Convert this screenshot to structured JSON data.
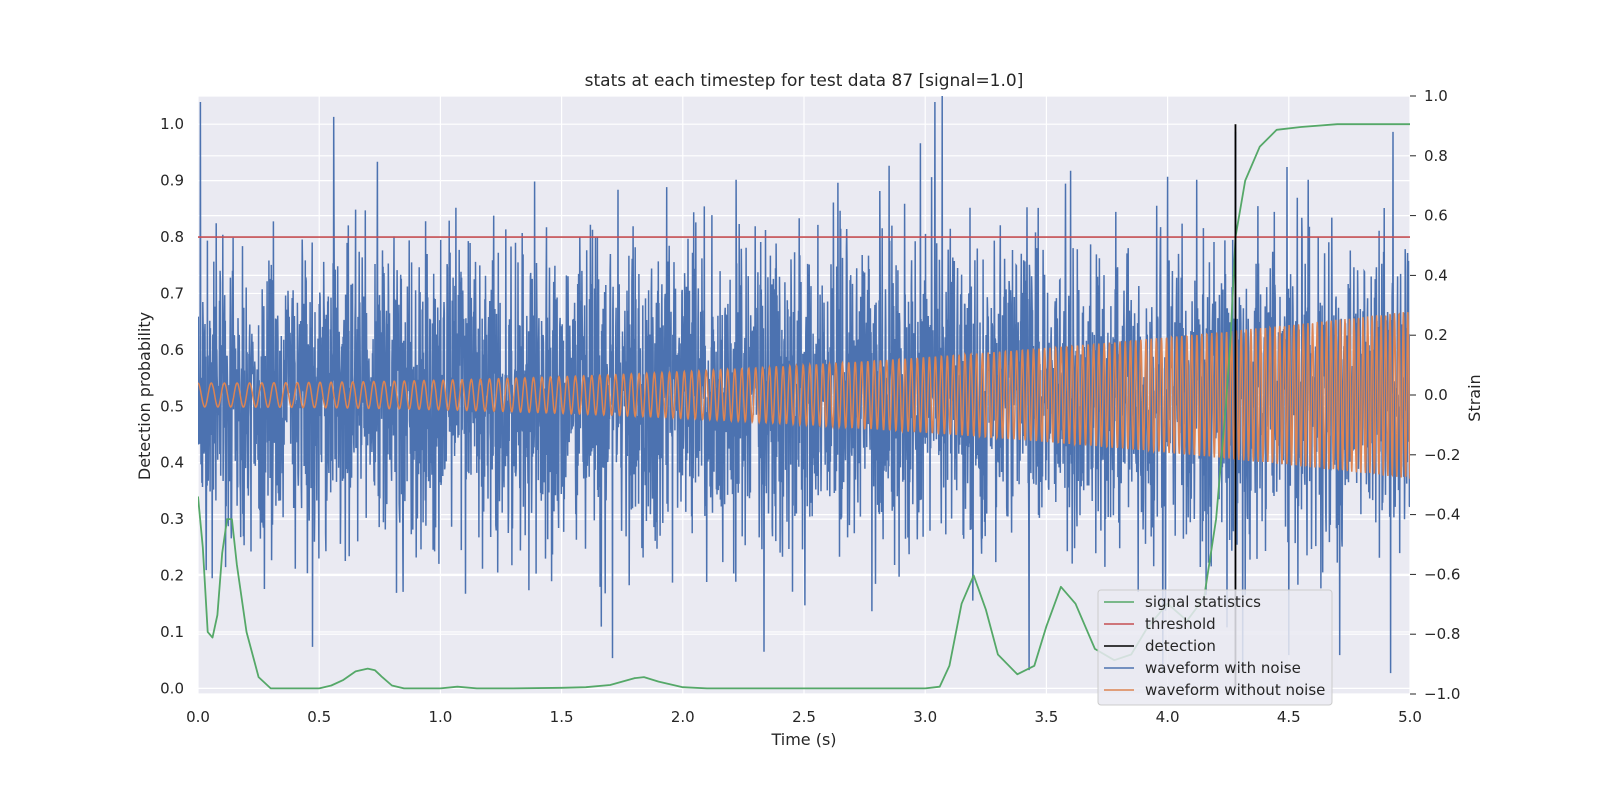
{
  "chart_data": {
    "type": "line",
    "title": "stats at each timestep for test data 87 [signal=1.0]",
    "xlabel": "Time (s)",
    "ylabel": "Detection probability",
    "y2label": "Strain",
    "xlim": [
      0.0,
      5.0
    ],
    "ylim": [
      -0.01,
      1.05
    ],
    "y2lim": [
      -1.0,
      1.0
    ],
    "grid": true,
    "legend_position": "lower-right",
    "x_ticks": [
      "0.0",
      "0.5",
      "1.0",
      "1.5",
      "2.0",
      "2.5",
      "3.0",
      "3.5",
      "4.0",
      "4.5",
      "5.0"
    ],
    "y_ticks": [
      "0.0",
      "0.1",
      "0.2",
      "0.3",
      "0.4",
      "0.5",
      "0.6",
      "0.7",
      "0.8",
      "0.9",
      "1.0"
    ],
    "y2_ticks": [
      "−1.0",
      "−0.8",
      "−0.6",
      "−0.4",
      "−0.2",
      "0.0",
      "0.2",
      "0.4",
      "0.6",
      "0.8",
      "1.0"
    ],
    "threshold": 0.8,
    "detection_time": 4.28,
    "series": [
      {
        "name": "signal statistics",
        "axis": "left",
        "color": "#55a868",
        "x": [
          0.0,
          0.02,
          0.04,
          0.06,
          0.08,
          0.1,
          0.12,
          0.14,
          0.16,
          0.2,
          0.25,
          0.3,
          0.35,
          0.4,
          0.5,
          0.55,
          0.6,
          0.65,
          0.7,
          0.73,
          0.76,
          0.8,
          0.85,
          0.9,
          1.0,
          1.07,
          1.15,
          1.3,
          1.5,
          1.6,
          1.7,
          1.75,
          1.8,
          1.84,
          1.9,
          2.0,
          2.1,
          2.5,
          3.0,
          3.06,
          3.1,
          3.15,
          3.2,
          3.25,
          3.3,
          3.38,
          3.45,
          3.5,
          3.56,
          3.62,
          3.7,
          3.78,
          3.85,
          3.92,
          4.0,
          4.08,
          4.15,
          4.2,
          4.24,
          4.26,
          4.28,
          4.32,
          4.38,
          4.45,
          4.55,
          4.7,
          5.0
        ],
        "y": [
          0.34,
          0.25,
          0.1,
          0.09,
          0.13,
          0.24,
          0.3,
          0.3,
          0.22,
          0.1,
          0.02,
          0.0,
          0.0,
          0.0,
          0.0,
          0.005,
          0.015,
          0.03,
          0.035,
          0.032,
          0.02,
          0.005,
          0.0,
          0.0,
          0.0,
          0.003,
          0.0,
          0.0,
          0.001,
          0.002,
          0.006,
          0.012,
          0.018,
          0.02,
          0.012,
          0.002,
          0.0,
          0.0,
          0.0,
          0.003,
          0.04,
          0.15,
          0.2,
          0.14,
          0.06,
          0.025,
          0.04,
          0.11,
          0.18,
          0.15,
          0.07,
          0.05,
          0.06,
          0.11,
          0.15,
          0.12,
          0.16,
          0.3,
          0.5,
          0.62,
          0.8,
          0.9,
          0.96,
          0.99,
          0.995,
          1.0,
          1.0
        ]
      },
      {
        "name": "threshold",
        "axis": "left",
        "color": "#c44e52"
      },
      {
        "name": "detection",
        "axis": "left",
        "color": "#000000"
      },
      {
        "name": "waveform with noise",
        "axis": "right",
        "color": "#4c72b0",
        "sample_rate": 800,
        "seed": 87,
        "noise_std": 0.25,
        "peaks": [
          [
            0.01,
            0.98
          ],
          [
            0.56,
            0.93
          ],
          [
            0.65,
            0.62
          ],
          [
            0.74,
            0.78
          ],
          [
            1.22,
            0.6
          ],
          [
            2.22,
            0.72
          ],
          [
            2.64,
            0.71
          ],
          [
            3.04,
            0.98
          ],
          [
            3.07,
            1.0
          ],
          [
            3.6,
            0.75
          ],
          [
            4.0,
            0.73
          ],
          [
            4.12,
            0.72
          ],
          [
            4.28,
            0.88
          ],
          [
            4.58,
            0.72
          ],
          [
            4.93,
            0.88
          ]
        ],
        "troughs": [
          [
            1.71,
            -0.88
          ],
          [
            3.98,
            -0.93
          ],
          [
            4.31,
            -0.92
          ],
          [
            4.5,
            -0.87
          ],
          [
            4.71,
            -0.87
          ],
          [
            4.92,
            -0.93
          ]
        ]
      },
      {
        "name": "waveform without noise",
        "axis": "right",
        "color": "#dd8452",
        "model": "chirp",
        "f0_hz": 18,
        "f1_hz": 55,
        "amp_start": 0.04,
        "amp_end": 0.28
      }
    ]
  }
}
